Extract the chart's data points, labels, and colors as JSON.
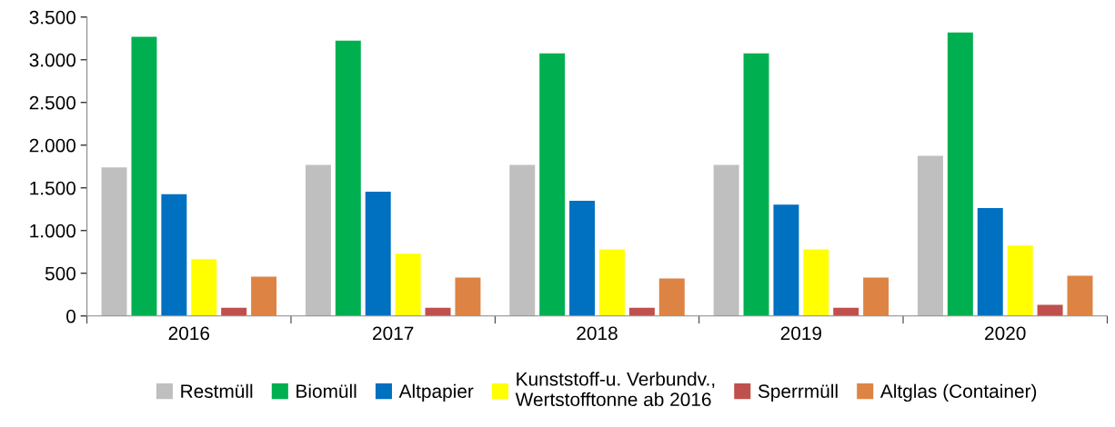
{
  "chart_data": {
    "type": "bar",
    "categories": [
      "2016",
      "2017",
      "2018",
      "2019",
      "2020"
    ],
    "series": [
      {
        "name": "Restmüll",
        "color": "#bfbfbf",
        "values": [
          1740,
          1770,
          1770,
          1770,
          1875
        ]
      },
      {
        "name": "Biomüll",
        "color": "#00b050",
        "values": [
          3270,
          3225,
          3075,
          3075,
          3320
        ]
      },
      {
        "name": "Altpapier",
        "color": "#0070c0",
        "values": [
          1425,
          1455,
          1350,
          1305,
          1265
        ]
      },
      {
        "name": "Kunststoff-u. Verbundv.,\nWertstofftonne ab 2016",
        "color": "#ffff00",
        "values": [
          665,
          730,
          780,
          780,
          825
        ]
      },
      {
        "name": "Sperrmüll",
        "color": "#c0504d",
        "values": [
          95,
          95,
          95,
          95,
          130
        ]
      },
      {
        "name": "Altglas (Container)",
        "color": "#dd8444",
        "values": [
          460,
          450,
          440,
          450,
          470
        ]
      }
    ],
    "ylim": [
      0,
      3500
    ],
    "yticks": [
      {
        "value": 0,
        "label": "0"
      },
      {
        "value": 500,
        "label": "500"
      },
      {
        "value": 1000,
        "label": "1.000"
      },
      {
        "value": 1500,
        "label": "1.500"
      },
      {
        "value": 2000,
        "label": "2.000"
      },
      {
        "value": 2500,
        "label": "2.500"
      },
      {
        "value": 3000,
        "label": "3.000"
      },
      {
        "value": 3500,
        "label": "3.500"
      }
    ],
    "grid": false,
    "legend": "bottom"
  }
}
